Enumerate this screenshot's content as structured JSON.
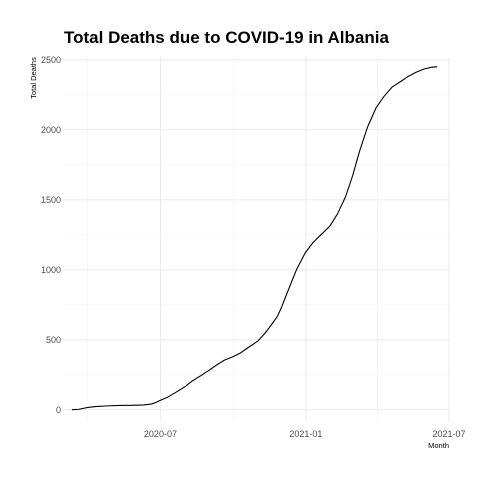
{
  "chart_data": {
    "type": "line",
    "title": "Total Deaths due to COVID-19 in Albania",
    "xlabel": "Month",
    "ylabel": "Total Deaths",
    "xlim": [
      "2020-03-01",
      "2021-07-01"
    ],
    "ylim": [
      -80,
      2520
    ],
    "x_ticks": [
      {
        "date": "2020-07-01",
        "label": "2020-07"
      },
      {
        "date": "2021-01-01",
        "label": "2021-01"
      },
      {
        "date": "2021-07-01",
        "label": "2021-07"
      }
    ],
    "y_ticks": [
      {
        "value": 0,
        "label": "0"
      },
      {
        "value": 500,
        "label": "500"
      },
      {
        "value": 1000,
        "label": "1000"
      },
      {
        "value": 1500,
        "label": "1500"
      },
      {
        "value": 2000,
        "label": "2000"
      },
      {
        "value": 2500,
        "label": "2500"
      }
    ],
    "grid": true,
    "series": [
      {
        "color": "#000000",
        "points": [
          [
            "2020-03-11",
            1
          ],
          [
            "2020-03-20",
            4
          ],
          [
            "2020-03-31",
            17
          ],
          [
            "2020-04-10",
            23
          ],
          [
            "2020-04-25",
            28
          ],
          [
            "2020-05-10",
            31
          ],
          [
            "2020-05-25",
            32
          ],
          [
            "2020-06-10",
            35
          ],
          [
            "2020-06-20",
            42
          ],
          [
            "2020-06-25",
            52
          ],
          [
            "2020-07-01",
            68
          ],
          [
            "2020-07-10",
            90
          ],
          [
            "2020-07-20",
            123
          ],
          [
            "2020-08-01",
            165
          ],
          [
            "2020-08-10",
            205
          ],
          [
            "2020-08-20",
            240
          ],
          [
            "2020-08-31",
            280
          ],
          [
            "2020-09-10",
            320
          ],
          [
            "2020-09-20",
            355
          ],
          [
            "2020-10-01",
            380
          ],
          [
            "2020-10-10",
            405
          ],
          [
            "2020-10-20",
            445
          ],
          [
            "2020-11-01",
            490
          ],
          [
            "2020-11-10",
            545
          ],
          [
            "2020-11-20",
            620
          ],
          [
            "2020-11-26",
            668
          ],
          [
            "2020-12-01",
            730
          ],
          [
            "2020-12-10",
            860
          ],
          [
            "2020-12-20",
            1000
          ],
          [
            "2020-12-31",
            1120
          ],
          [
            "2021-01-10",
            1195
          ],
          [
            "2021-01-20",
            1250
          ],
          [
            "2021-01-31",
            1310
          ],
          [
            "2021-02-10",
            1400
          ],
          [
            "2021-02-20",
            1520
          ],
          [
            "2021-03-01",
            1670
          ],
          [
            "2021-03-10",
            1850
          ],
          [
            "2021-03-20",
            2020
          ],
          [
            "2021-03-31",
            2160
          ],
          [
            "2021-04-10",
            2240
          ],
          [
            "2021-04-20",
            2305
          ],
          [
            "2021-05-01",
            2345
          ],
          [
            "2021-05-10",
            2380
          ],
          [
            "2021-05-20",
            2410
          ],
          [
            "2021-05-31",
            2435
          ],
          [
            "2021-06-10",
            2448
          ],
          [
            "2021-06-16",
            2450
          ]
        ]
      }
    ]
  }
}
